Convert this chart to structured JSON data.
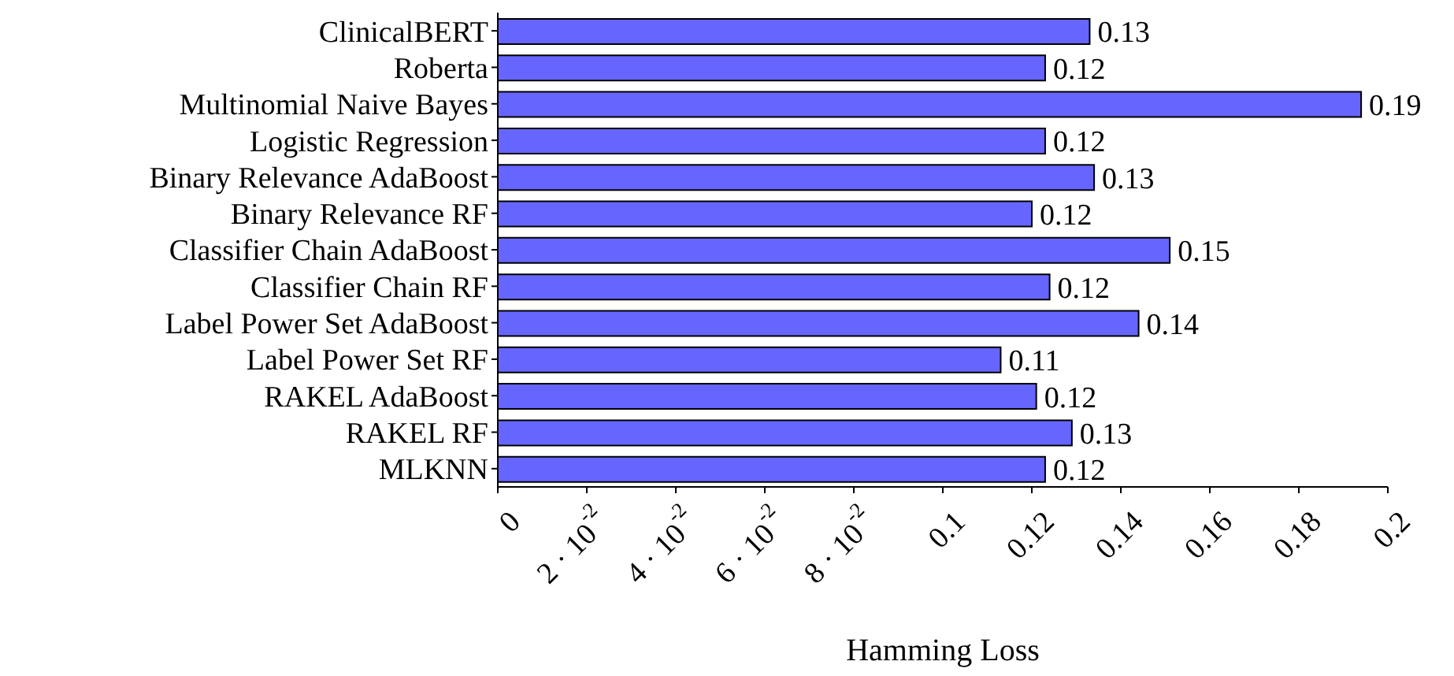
{
  "chart_data": {
    "type": "bar",
    "orientation": "horizontal",
    "xlabel": "Hamming Loss",
    "categories": [
      "ClinicalBERT",
      "Roberta",
      "Multinomial Naive Bayes",
      "Logistic Regression",
      "Binary Relevance AdaBoost",
      "Binary Relevance RF",
      "Classifier Chain AdaBoost",
      "Classifier Chain RF",
      "Label Power Set AdaBoost",
      "Label Power Set RF",
      "RAKEL AdaBoost",
      "RAKEL RF",
      "MLKNN"
    ],
    "values": [
      0.133,
      0.123,
      0.194,
      0.123,
      0.134,
      0.12,
      0.151,
      0.124,
      0.144,
      0.113,
      0.121,
      0.129,
      0.123
    ],
    "value_labels": [
      "0.13",
      "0.12",
      "0.19",
      "0.12",
      "0.13",
      "0.12",
      "0.15",
      "0.12",
      "0.14",
      "0.11",
      "0.12",
      "0.13",
      "0.12"
    ],
    "color": "#6666ff",
    "xlim": [
      0,
      0.2
    ],
    "xticks": [
      0,
      {
        "value": 0.02,
        "label": "2 · 10$^{-2}$"
      },
      {
        "value": 0.04,
        "label": "4 · 10$^{-2}$"
      },
      {
        "value": 0.06,
        "label": "6 · 10$^{-2}$"
      },
      {
        "value": 0.08,
        "label": "8 · 10$^{-2}$"
      },
      0.1,
      0.12,
      0.14,
      0.16,
      0.18,
      0.2
    ],
    "grid": false
  }
}
